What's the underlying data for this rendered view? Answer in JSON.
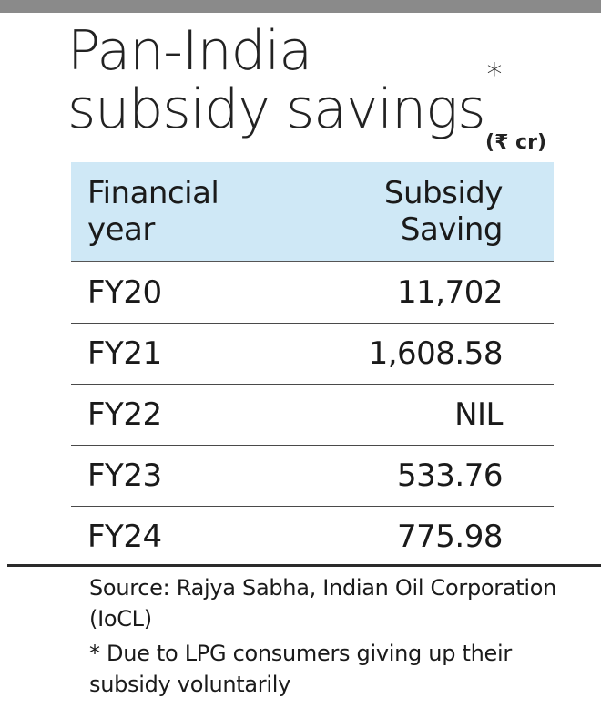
{
  "title": {
    "line1": "Pan-India",
    "line2": "subsidy savings",
    "marker": "*"
  },
  "unit": "(₹ cr)",
  "chart_data": {
    "type": "table",
    "title": "Pan-India subsidy savings*",
    "unit": "(₹ cr)",
    "columns": [
      "Financial year",
      "Subsidy Saving"
    ],
    "header": {
      "col1_line1": "Financial",
      "col1_line2": "year",
      "col2_line1": "Subsidy",
      "col2_line2": "Saving"
    },
    "rows": [
      {
        "year": "FY20",
        "value": "11,702"
      },
      {
        "year": "FY21",
        "value": "1,608.58"
      },
      {
        "year": "FY22",
        "value": "NIL"
      },
      {
        "year": "FY23",
        "value": "533.76"
      },
      {
        "year": "FY24",
        "value": "775.98"
      }
    ]
  },
  "notes": {
    "source": "Source: Rajya Sabha, Indian Oil Corporation (IoCL)",
    "footnote": "* Due to LPG consumers giving up their subsidy voluntarily"
  },
  "colors": {
    "header_bg": "#cfe8f6",
    "top_bar": "#8a8a8a",
    "text": "#1a1a1a"
  }
}
